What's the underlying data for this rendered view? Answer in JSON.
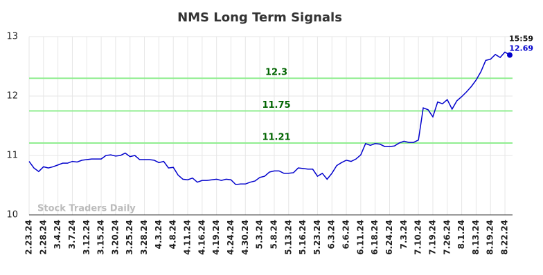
{
  "chart_data": {
    "type": "line",
    "title": "NMS Long Term Signals",
    "categories": [
      "2.23.24",
      null,
      null,
      "2.28.24",
      null,
      null,
      "3.4.24",
      null,
      null,
      "3.7.24",
      null,
      null,
      "3.12.24",
      null,
      null,
      "3.15.24",
      null,
      null,
      "3.20.24",
      null,
      null,
      "3.25.24",
      null,
      null,
      "3.28.24",
      null,
      null,
      "4.3.24",
      null,
      null,
      "4.8.24",
      null,
      null,
      "4.11.24",
      null,
      null,
      "4.16.24",
      null,
      null,
      "4.19.24",
      null,
      null,
      "4.24.24",
      null,
      null,
      "4.30.24",
      null,
      null,
      "5.3.24",
      null,
      null,
      "5.8.24",
      null,
      null,
      "5.13.24",
      null,
      null,
      "5.16.24",
      null,
      null,
      "5.23.24",
      null,
      null,
      "6.3.24",
      null,
      null,
      "6.6.24",
      null,
      null,
      "6.11.24",
      null,
      null,
      "6.18.24",
      null,
      null,
      "6.24.24",
      null,
      null,
      "7.3.24",
      null,
      null,
      "7.10.24",
      null,
      null,
      "7.19.24",
      null,
      null,
      "7.26.24",
      null,
      null,
      "8.1.24",
      null,
      null,
      "8.13.24",
      null,
      null,
      "8.19.24",
      null,
      null,
      "8.22.24",
      null
    ],
    "series": [
      {
        "name": "NMS",
        "color": "#0000cc",
        "values": [
          10.9,
          10.79,
          10.73,
          10.81,
          10.79,
          10.81,
          10.84,
          10.87,
          10.87,
          10.9,
          10.89,
          10.92,
          10.93,
          10.94,
          10.94,
          10.94,
          11.0,
          11.01,
          10.99,
          11.0,
          11.04,
          10.98,
          11.0,
          10.93,
          10.93,
          10.93,
          10.92,
          10.88,
          10.9,
          10.79,
          10.8,
          10.67,
          10.6,
          10.59,
          10.62,
          10.55,
          10.58,
          10.58,
          10.59,
          10.6,
          10.58,
          10.6,
          10.59,
          10.51,
          10.52,
          10.52,
          10.55,
          10.57,
          10.63,
          10.65,
          10.72,
          10.74,
          10.74,
          10.7,
          10.7,
          10.71,
          10.79,
          10.78,
          10.77,
          10.77,
          10.65,
          10.7,
          10.6,
          10.7,
          10.83,
          10.88,
          10.92,
          10.9,
          10.94,
          11.01,
          11.2,
          11.17,
          11.2,
          11.19,
          11.15,
          11.15,
          11.16,
          11.21,
          11.24,
          11.22,
          11.22,
          11.26,
          11.8,
          11.77,
          11.65,
          11.9,
          11.87,
          11.94,
          11.78,
          11.92,
          11.99,
          12.07,
          12.16,
          12.27,
          12.41,
          12.6,
          12.62,
          12.7,
          12.65,
          12.74,
          12.69
        ]
      }
    ],
    "ylim": [
      10,
      13
    ],
    "yticks": [
      10,
      11,
      12,
      13
    ],
    "grid": true,
    "hlines": [
      {
        "value": 12.3,
        "color": "#90ee90"
      },
      {
        "value": 11.75,
        "color": "#90ee90"
      },
      {
        "value": 11.21,
        "color": "#90ee90"
      }
    ],
    "last_time": "15:59",
    "watermark": "Stock Traders Daily"
  }
}
